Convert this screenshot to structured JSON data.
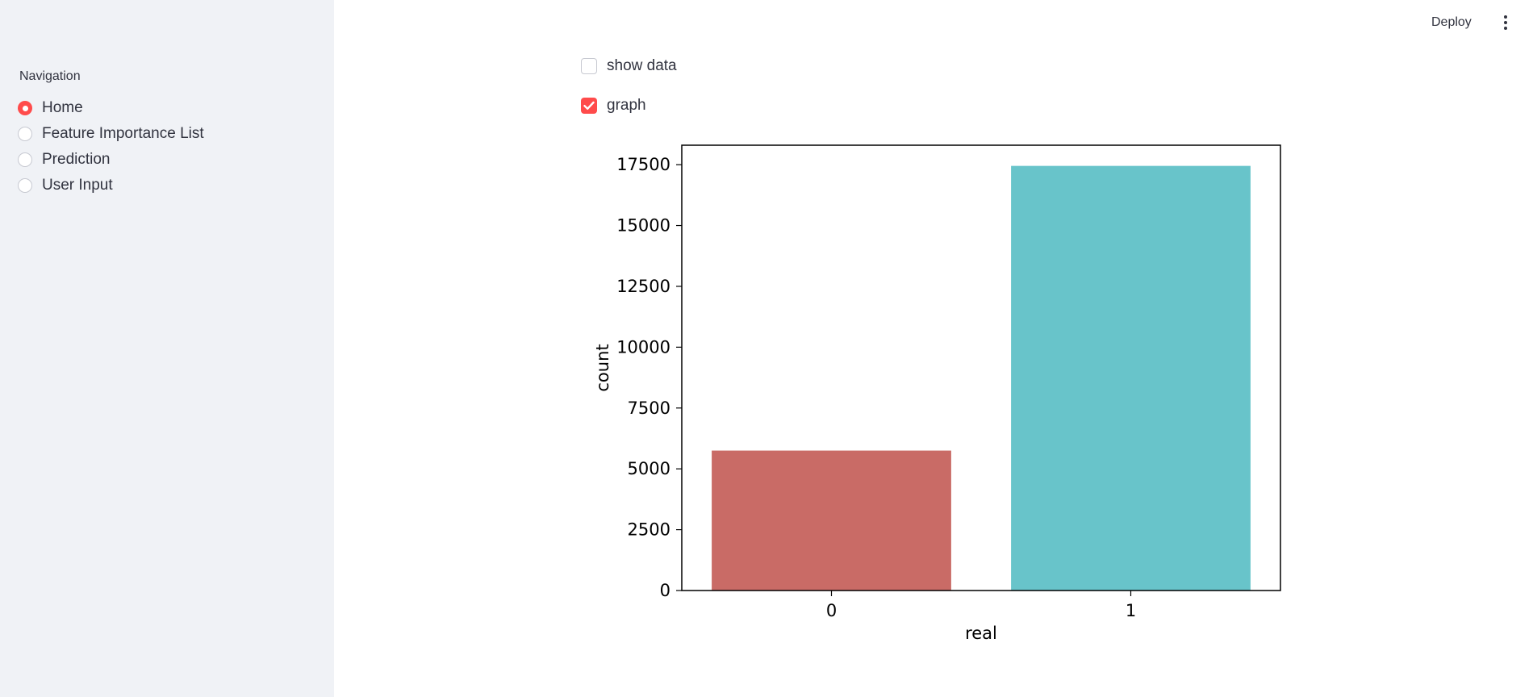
{
  "sidebar": {
    "title": "Navigation",
    "items": [
      {
        "label": "Home",
        "selected": true
      },
      {
        "label": "Feature Importance List",
        "selected": false
      },
      {
        "label": "Prediction",
        "selected": false
      },
      {
        "label": "User Input",
        "selected": false
      }
    ]
  },
  "header": {
    "deploy_label": "Deploy",
    "menu_icon": "vertical-dots-icon"
  },
  "main": {
    "checkboxes": [
      {
        "label": "show data",
        "checked": false
      },
      {
        "label": "graph",
        "checked": true
      }
    ]
  },
  "colors": {
    "accent": "#ff4b4b",
    "sidebar_bg": "#f0f2f6",
    "bar_0": "#c96b66",
    "bar_1": "#68c4ca"
  },
  "chart_data": {
    "type": "bar",
    "categories": [
      "0",
      "1"
    ],
    "values": [
      5750,
      17450
    ],
    "colors": [
      "#c96b66",
      "#68c4ca"
    ],
    "xlabel": "real",
    "ylabel": "count",
    "ylim": [
      0,
      18300
    ],
    "yticks": [
      0,
      2500,
      5000,
      7500,
      10000,
      12500,
      15000,
      17500
    ],
    "grid": false
  }
}
